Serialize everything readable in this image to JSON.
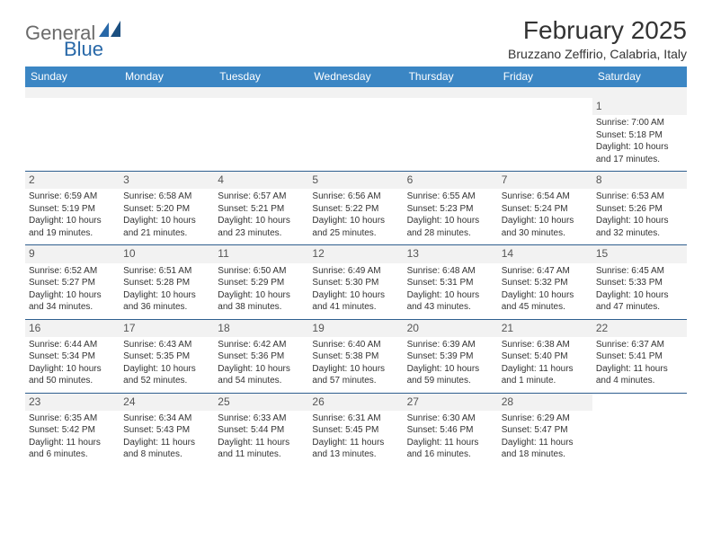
{
  "logo": {
    "text1": "General",
    "text2": "Blue"
  },
  "title": "February 2025",
  "location": "Bruzzano Zeffirio, Calabria, Italy",
  "colors": {
    "header_bg": "#3b86c4",
    "header_text": "#ffffff",
    "divider": "#2f5f8f",
    "daynum_bg": "#f2f2f2",
    "text": "#333333"
  },
  "dayNames": [
    "Sunday",
    "Monday",
    "Tuesday",
    "Wednesday",
    "Thursday",
    "Friday",
    "Saturday"
  ],
  "weeks": [
    [
      null,
      null,
      null,
      null,
      null,
      null,
      {
        "n": "1",
        "sr": "7:00 AM",
        "ss": "5:18 PM",
        "dl": "10 hours and 17 minutes."
      }
    ],
    [
      {
        "n": "2",
        "sr": "6:59 AM",
        "ss": "5:19 PM",
        "dl": "10 hours and 19 minutes."
      },
      {
        "n": "3",
        "sr": "6:58 AM",
        "ss": "5:20 PM",
        "dl": "10 hours and 21 minutes."
      },
      {
        "n": "4",
        "sr": "6:57 AM",
        "ss": "5:21 PM",
        "dl": "10 hours and 23 minutes."
      },
      {
        "n": "5",
        "sr": "6:56 AM",
        "ss": "5:22 PM",
        "dl": "10 hours and 25 minutes."
      },
      {
        "n": "6",
        "sr": "6:55 AM",
        "ss": "5:23 PM",
        "dl": "10 hours and 28 minutes."
      },
      {
        "n": "7",
        "sr": "6:54 AM",
        "ss": "5:24 PM",
        "dl": "10 hours and 30 minutes."
      },
      {
        "n": "8",
        "sr": "6:53 AM",
        "ss": "5:26 PM",
        "dl": "10 hours and 32 minutes."
      }
    ],
    [
      {
        "n": "9",
        "sr": "6:52 AM",
        "ss": "5:27 PM",
        "dl": "10 hours and 34 minutes."
      },
      {
        "n": "10",
        "sr": "6:51 AM",
        "ss": "5:28 PM",
        "dl": "10 hours and 36 minutes."
      },
      {
        "n": "11",
        "sr": "6:50 AM",
        "ss": "5:29 PM",
        "dl": "10 hours and 38 minutes."
      },
      {
        "n": "12",
        "sr": "6:49 AM",
        "ss": "5:30 PM",
        "dl": "10 hours and 41 minutes."
      },
      {
        "n": "13",
        "sr": "6:48 AM",
        "ss": "5:31 PM",
        "dl": "10 hours and 43 minutes."
      },
      {
        "n": "14",
        "sr": "6:47 AM",
        "ss": "5:32 PM",
        "dl": "10 hours and 45 minutes."
      },
      {
        "n": "15",
        "sr": "6:45 AM",
        "ss": "5:33 PM",
        "dl": "10 hours and 47 minutes."
      }
    ],
    [
      {
        "n": "16",
        "sr": "6:44 AM",
        "ss": "5:34 PM",
        "dl": "10 hours and 50 minutes."
      },
      {
        "n": "17",
        "sr": "6:43 AM",
        "ss": "5:35 PM",
        "dl": "10 hours and 52 minutes."
      },
      {
        "n": "18",
        "sr": "6:42 AM",
        "ss": "5:36 PM",
        "dl": "10 hours and 54 minutes."
      },
      {
        "n": "19",
        "sr": "6:40 AM",
        "ss": "5:38 PM",
        "dl": "10 hours and 57 minutes."
      },
      {
        "n": "20",
        "sr": "6:39 AM",
        "ss": "5:39 PM",
        "dl": "10 hours and 59 minutes."
      },
      {
        "n": "21",
        "sr": "6:38 AM",
        "ss": "5:40 PM",
        "dl": "11 hours and 1 minute."
      },
      {
        "n": "22",
        "sr": "6:37 AM",
        "ss": "5:41 PM",
        "dl": "11 hours and 4 minutes."
      }
    ],
    [
      {
        "n": "23",
        "sr": "6:35 AM",
        "ss": "5:42 PM",
        "dl": "11 hours and 6 minutes."
      },
      {
        "n": "24",
        "sr": "6:34 AM",
        "ss": "5:43 PM",
        "dl": "11 hours and 8 minutes."
      },
      {
        "n": "25",
        "sr": "6:33 AM",
        "ss": "5:44 PM",
        "dl": "11 hours and 11 minutes."
      },
      {
        "n": "26",
        "sr": "6:31 AM",
        "ss": "5:45 PM",
        "dl": "11 hours and 13 minutes."
      },
      {
        "n": "27",
        "sr": "6:30 AM",
        "ss": "5:46 PM",
        "dl": "11 hours and 16 minutes."
      },
      {
        "n": "28",
        "sr": "6:29 AM",
        "ss": "5:47 PM",
        "dl": "11 hours and 18 minutes."
      },
      null
    ]
  ],
  "labels": {
    "sunrise": "Sunrise: ",
    "sunset": "Sunset: ",
    "daylight": "Daylight: "
  }
}
